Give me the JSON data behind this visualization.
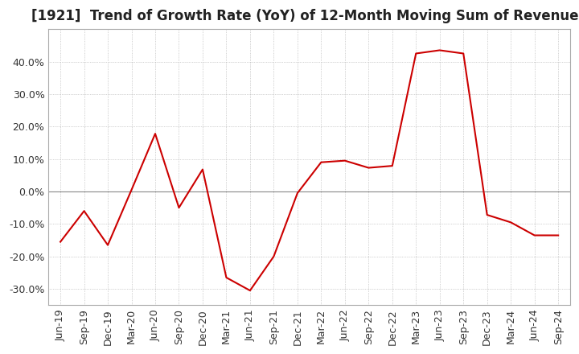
{
  "title": "[1921]  Trend of Growth Rate (YoY) of 12-Month Moving Sum of Revenues",
  "labels": [
    "Jun-19",
    "Sep-19",
    "Dec-19",
    "Mar-20",
    "Jun-20",
    "Sep-20",
    "Dec-20",
    "Mar-21",
    "Jun-21",
    "Sep-21",
    "Dec-21",
    "Mar-22",
    "Jun-22",
    "Sep-22",
    "Dec-22",
    "Mar-23",
    "Jun-23",
    "Sep-23",
    "Dec-23",
    "Mar-24",
    "Jun-24",
    "Sep-24"
  ],
  "values": [
    -0.155,
    -0.06,
    -0.165,
    0.005,
    0.178,
    -0.05,
    0.068,
    -0.265,
    -0.305,
    -0.2,
    -0.005,
    0.09,
    0.095,
    0.073,
    0.079,
    0.425,
    0.435,
    0.425,
    -0.072,
    -0.095,
    -0.135,
    -0.135
  ],
  "line_color": "#cc0000",
  "background_color": "#ffffff",
  "plot_bg_color": "#ffffff",
  "grid_color": "#aaaaaa",
  "ylim": [
    -0.35,
    0.5
  ],
  "yticks": [
    -0.3,
    -0.2,
    -0.1,
    0.0,
    0.1,
    0.2,
    0.3,
    0.4
  ],
  "title_fontsize": 12,
  "tick_fontsize": 9,
  "zero_line_color": "#888888",
  "spine_color": "#aaaaaa"
}
